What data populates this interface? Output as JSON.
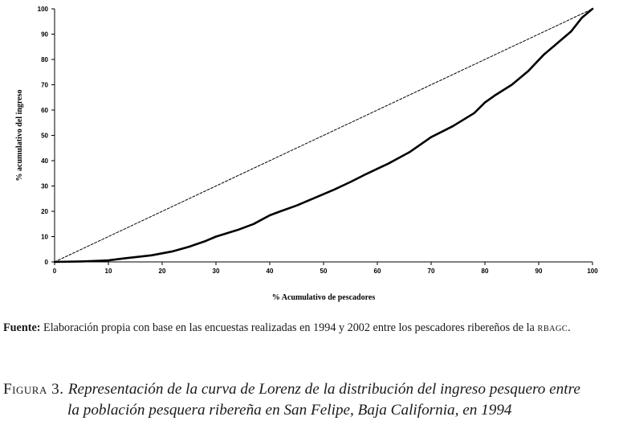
{
  "chart_data": {
    "type": "line",
    "xlabel": "% Acumulativo de pescadores",
    "ylabel": "% acumulativo del ingreso",
    "xlim": [
      0,
      100
    ],
    "ylim": [
      0,
      100
    ],
    "x_ticks": [
      "0",
      "10",
      "20",
      "30",
      "40",
      "50",
      "60",
      "70",
      "80",
      "90",
      "100"
    ],
    "y_ticks": [
      "0",
      "10",
      "20",
      "30",
      "40",
      "50",
      "60",
      "70",
      "80",
      "90",
      "100"
    ],
    "grid": false,
    "legend": "none",
    "series": [
      {
        "style": "dashed",
        "color": "#000000",
        "points": [
          [
            0,
            0
          ],
          [
            100,
            100
          ]
        ]
      },
      {
        "style": "solid",
        "color": "#000000",
        "points": [
          [
            0,
            0
          ],
          [
            5,
            0.2
          ],
          [
            10,
            0.6
          ],
          [
            13,
            1.4
          ],
          [
            18,
            2.6
          ],
          [
            20,
            3.4
          ],
          [
            22,
            4.2
          ],
          [
            25,
            6
          ],
          [
            28,
            8.2
          ],
          [
            30,
            10
          ],
          [
            32,
            11.3
          ],
          [
            34,
            12.6
          ],
          [
            37,
            15
          ],
          [
            40,
            18.4
          ],
          [
            42,
            20
          ],
          [
            45,
            22.3
          ],
          [
            48,
            25
          ],
          [
            52,
            28.6
          ],
          [
            55,
            31.6
          ],
          [
            58,
            34.8
          ],
          [
            60,
            36.8
          ],
          [
            62,
            38.8
          ],
          [
            66,
            43.4
          ],
          [
            70,
            49.3
          ],
          [
            74,
            53.6
          ],
          [
            78,
            58.8
          ],
          [
            80,
            63
          ],
          [
            82,
            66
          ],
          [
            85,
            70
          ],
          [
            88,
            75.3
          ],
          [
            91,
            82
          ],
          [
            93,
            85.6
          ],
          [
            96,
            91
          ],
          [
            98,
            96.4
          ],
          [
            100,
            100
          ]
        ]
      }
    ]
  },
  "note": {
    "lead": "Fuente:",
    "text": " Elaboración propia con base en las encuestas realizadas en 1994 y 2002 entre los pescadores ribereños de la ",
    "abbr": "RBAGC",
    "end": "."
  },
  "caption": {
    "prefix": "Figura 3. ",
    "line1": "Representación de la curva de Lorenz de la distribución del ingreso pesquero entre",
    "line2": "la población pesquera ribereña en San Felipe, Baja California, en 1994"
  }
}
